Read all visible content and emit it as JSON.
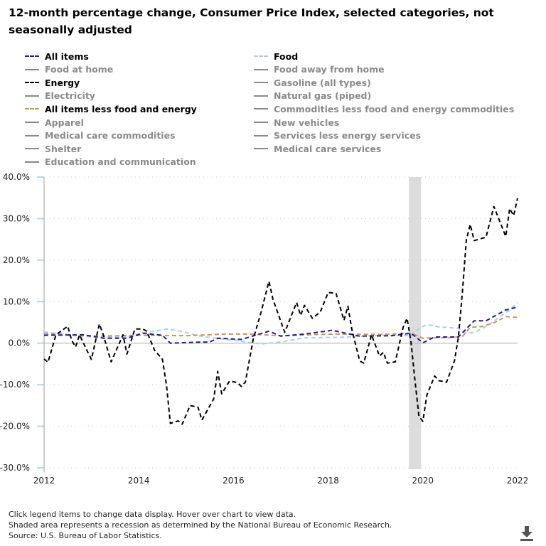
{
  "title": "12-month percentage change, Consumer Price Index, selected categories, not seasonally adjusted",
  "legend": [
    {
      "label": "All items",
      "active": true,
      "color": "#1c1ca6"
    },
    {
      "label": "Food",
      "active": true,
      "color": "#a8cff5"
    },
    {
      "label": "Food at home",
      "active": false,
      "color": "#8a8a8a"
    },
    {
      "label": "Food away from home",
      "active": false,
      "color": "#8a8a8a"
    },
    {
      "label": "Energy",
      "active": true,
      "color": "#000000"
    },
    {
      "label": "Gasoline (all types)",
      "active": false,
      "color": "#8a8a8a"
    },
    {
      "label": "Electricity",
      "active": false,
      "color": "#8a8a8a"
    },
    {
      "label": "Natural gas (piped)",
      "active": false,
      "color": "#8a8a8a"
    },
    {
      "label": "All items less food and energy",
      "active": true,
      "color": "#c9984a"
    },
    {
      "label": "Commodities less food and energy commodities",
      "active": false,
      "color": "#8a8a8a"
    },
    {
      "label": "Apparel",
      "active": false,
      "color": "#8a8a8a"
    },
    {
      "label": "New vehicles",
      "active": false,
      "color": "#8a8a8a"
    },
    {
      "label": "Medical care commodities",
      "active": false,
      "color": "#8a8a8a"
    },
    {
      "label": "Services less energy services",
      "active": false,
      "color": "#8a8a8a"
    },
    {
      "label": "Shelter",
      "active": false,
      "color": "#8a8a8a"
    },
    {
      "label": "Medical care services",
      "active": false,
      "color": "#8a8a8a"
    },
    {
      "label": "Education and communication",
      "active": false,
      "color": "#8a8a8a"
    }
  ],
  "chart_data": {
    "type": "line",
    "title": "12-month percentage change, Consumer Price Index, selected categories, not seasonally adjusted",
    "xlabel": "",
    "ylabel": "",
    "xlim": [
      "2012-05",
      "2022-05"
    ],
    "x_tick_labels": [
      "2012",
      "2014",
      "2016",
      "2018",
      "2020",
      "2022"
    ],
    "ylim": [
      -30,
      40
    ],
    "y_ticks": [
      40,
      30,
      20,
      10,
      0,
      -10,
      -20,
      -30
    ],
    "y_tick_labels": [
      "40.0%",
      "30.0%",
      "20.0%",
      "10.0%",
      "0.0%",
      "-10.0%",
      "-20.0%",
      "-30.0%"
    ],
    "grid": true,
    "legend_position": "top",
    "recessions": [
      {
        "start": "2020-02",
        "end": "2020-04"
      }
    ],
    "series": [
      {
        "name": "All items",
        "color": "#1c1ca6",
        "style": "dashed",
        "points": [
          [
            "2012-05",
            1.9
          ],
          [
            "2013-03",
            2.0
          ],
          [
            "2013-08",
            1.2
          ],
          [
            "2014-02",
            1.2
          ],
          [
            "2014-06",
            2.4
          ],
          [
            "2014-11",
            1.9
          ],
          [
            "2015-01",
            0.0
          ],
          [
            "2015-07",
            0.2
          ],
          [
            "2015-11",
            0.3
          ],
          [
            "2016-01",
            1.2
          ],
          [
            "2016-07",
            0.9
          ],
          [
            "2017-02",
            2.9
          ],
          [
            "2017-05",
            1.7
          ],
          [
            "2017-11",
            2.2
          ],
          [
            "2018-06",
            3.1
          ],
          [
            "2019-01",
            1.7
          ],
          [
            "2019-09",
            1.8
          ],
          [
            "2020-02",
            2.4
          ],
          [
            "2020-05",
            0.1
          ],
          [
            "2020-08",
            1.5
          ],
          [
            "2021-02",
            1.5
          ],
          [
            "2021-06",
            5.4
          ],
          [
            "2021-09",
            5.4
          ],
          [
            "2022-02",
            8.0
          ],
          [
            "2022-05",
            8.7
          ]
        ]
      },
      {
        "name": "Food",
        "color": "#a8cff5",
        "style": "dashed",
        "points": [
          [
            "2012-05",
            2.7
          ],
          [
            "2013-05",
            1.5
          ],
          [
            "2014-01",
            1.4
          ],
          [
            "2014-07",
            2.6
          ],
          [
            "2014-12",
            3.4
          ],
          [
            "2015-03",
            3.0
          ],
          [
            "2015-09",
            1.6
          ],
          [
            "2016-05",
            0.7
          ],
          [
            "2016-12",
            -0.2
          ],
          [
            "2017-05",
            0.3
          ],
          [
            "2017-11",
            1.3
          ],
          [
            "2018-08",
            1.4
          ],
          [
            "2019-06",
            1.9
          ],
          [
            "2020-02",
            1.8
          ],
          [
            "2020-04",
            3.5
          ],
          [
            "2020-06",
            4.5
          ],
          [
            "2020-09",
            3.9
          ],
          [
            "2021-02",
            3.6
          ],
          [
            "2021-04",
            2.4
          ],
          [
            "2021-06",
            2.6
          ],
          [
            "2021-09",
            4.0
          ],
          [
            "2021-12",
            6.0
          ],
          [
            "2022-03",
            8.0
          ],
          [
            "2022-05",
            9.8
          ]
        ]
      },
      {
        "name": "Energy",
        "color": "#000000",
        "style": "dashed",
        "points": [
          [
            "2012-05",
            -3.8
          ],
          [
            "2012-06",
            -4.6
          ],
          [
            "2012-08",
            2.0
          ],
          [
            "2012-11",
            4.1
          ],
          [
            "2012-12",
            0.7
          ],
          [
            "2013-01",
            -0.9
          ],
          [
            "2013-02",
            2.0
          ],
          [
            "2013-04",
            -2.0
          ],
          [
            "2013-05",
            -3.9
          ],
          [
            "2013-07",
            4.6
          ],
          [
            "2013-08",
            2.0
          ],
          [
            "2013-10",
            -4.5
          ],
          [
            "2014-01",
            2.0
          ],
          [
            "2014-02",
            -2.6
          ],
          [
            "2014-04",
            3.4
          ],
          [
            "2014-06",
            3.4
          ],
          [
            "2014-07",
            2.9
          ],
          [
            "2014-09",
            -1.7
          ],
          [
            "2014-11",
            -3.9
          ],
          [
            "2014-12",
            -10.0
          ],
          [
            "2015-01",
            -19.3
          ],
          [
            "2015-03",
            -18.7
          ],
          [
            "2015-04",
            -19.5
          ],
          [
            "2015-06",
            -15.0
          ],
          [
            "2015-08",
            -15.4
          ],
          [
            "2015-09",
            -18.5
          ],
          [
            "2015-12",
            -13.4
          ],
          [
            "2016-01",
            -6.8
          ],
          [
            "2016-02",
            -12.2
          ],
          [
            "2016-04",
            -9.1
          ],
          [
            "2016-06",
            -9.5
          ],
          [
            "2016-07",
            -10.4
          ],
          [
            "2016-08",
            -9.4
          ],
          [
            "2016-10",
            0.9
          ],
          [
            "2016-12",
            7.5
          ],
          [
            "2017-02",
            14.9
          ],
          [
            "2017-03",
            10.6
          ],
          [
            "2017-06",
            2.6
          ],
          [
            "2017-09",
            9.8
          ],
          [
            "2017-10",
            6.7
          ],
          [
            "2017-11",
            9.1
          ],
          [
            "2018-01",
            6.0
          ],
          [
            "2018-03",
            7.5
          ],
          [
            "2018-05",
            12.2
          ],
          [
            "2018-07",
            12.0
          ],
          [
            "2018-09",
            5.5
          ],
          [
            "2018-10",
            8.9
          ],
          [
            "2018-11",
            3.3
          ],
          [
            "2019-01",
            -4.3
          ],
          [
            "2019-02",
            -4.8
          ],
          [
            "2019-04",
            2.0
          ],
          [
            "2019-06",
            -3.1
          ],
          [
            "2019-07",
            -2.2
          ],
          [
            "2019-08",
            -4.8
          ],
          [
            "2019-10",
            -4.5
          ],
          [
            "2019-12",
            3.8
          ],
          [
            "2020-01",
            6.0
          ],
          [
            "2020-02",
            0.3
          ],
          [
            "2020-03",
            -9.0
          ],
          [
            "2020-04",
            -17.6
          ],
          [
            "2020-05",
            -18.8
          ],
          [
            "2020-06",
            -12.5
          ],
          [
            "2020-08",
            -7.9
          ],
          [
            "2020-09",
            -9.0
          ],
          [
            "2020-11",
            -9.4
          ],
          [
            "2021-01",
            -4.3
          ],
          [
            "2021-02",
            1.5
          ],
          [
            "2021-03",
            12.0
          ],
          [
            "2021-04",
            24.8
          ],
          [
            "2021-05",
            28.6
          ],
          [
            "2021-06",
            24.7
          ],
          [
            "2021-09",
            25.5
          ],
          [
            "2021-11",
            32.9
          ],
          [
            "2022-02",
            25.7
          ],
          [
            "2022-03",
            32.4
          ],
          [
            "2022-04",
            30.7
          ],
          [
            "2022-05",
            34.9
          ]
        ]
      },
      {
        "name": "All items less food and energy",
        "color": "#c9984a",
        "style": "dashed",
        "points": [
          [
            "2012-05",
            2.3
          ],
          [
            "2013-07",
            1.7
          ],
          [
            "2014-05",
            1.9
          ],
          [
            "2015-05",
            1.8
          ],
          [
            "2016-03",
            2.2
          ],
          [
            "2016-09",
            2.2
          ],
          [
            "2017-05",
            1.8
          ],
          [
            "2018-03",
            2.1
          ],
          [
            "2018-08",
            2.2
          ],
          [
            "2019-06",
            2.1
          ],
          [
            "2020-02",
            2.4
          ],
          [
            "2020-05",
            1.2
          ],
          [
            "2021-01",
            1.4
          ],
          [
            "2021-03",
            1.6
          ],
          [
            "2021-05",
            3.8
          ],
          [
            "2021-08",
            4.0
          ],
          [
            "2021-11",
            4.9
          ],
          [
            "2022-02",
            6.4
          ],
          [
            "2022-05",
            6.2
          ]
        ]
      }
    ]
  },
  "footer": {
    "line1": "Click legend items to change data display. Hover over chart to view data.",
    "line2": "Shaded area represents a recession as determined by the National Bureau of Economic Research.",
    "line3": "Source: U.S. Bureau of Labor Statistics."
  },
  "download_icon": "download-icon"
}
